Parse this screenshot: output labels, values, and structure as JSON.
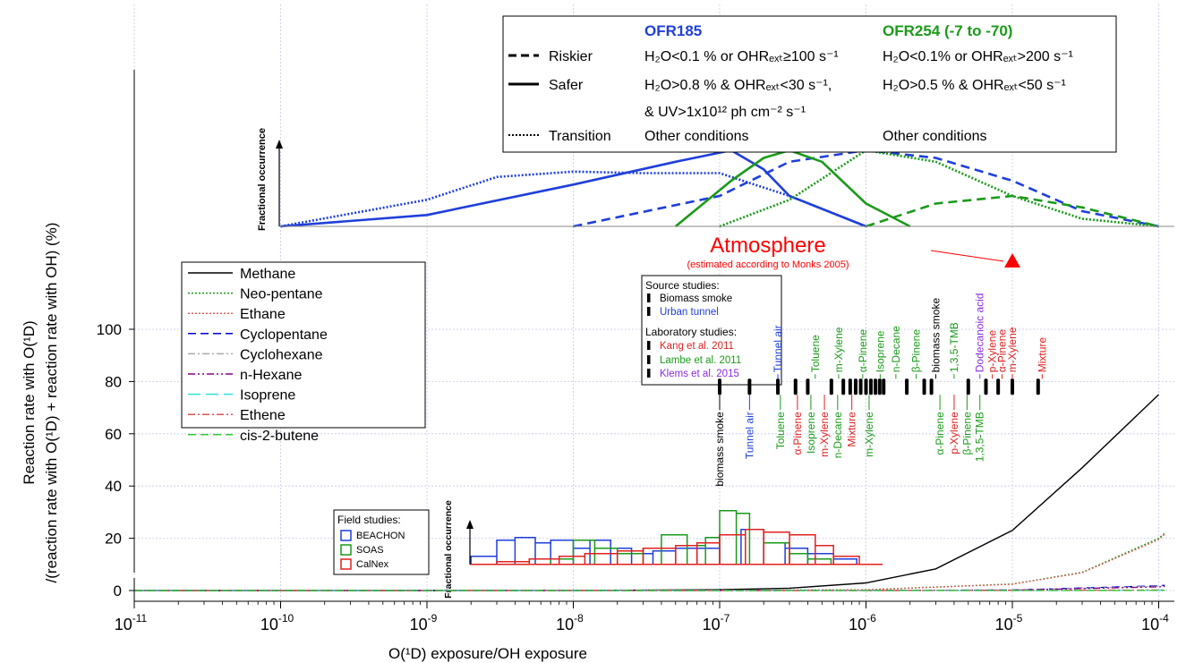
{
  "chart_data": {
    "type": "line",
    "x_scale": "log",
    "xlim": [
      5e-12,
      0.00011
    ],
    "ylim": [
      -2,
      115
    ],
    "grid": true,
    "xlabel": "O(¹D) exposure/OH exposure",
    "ylabel_line1": "Reaction rate with O(¹D)",
    "ylabel_line2": "/(reaction rate with O(¹D) + reaction rate with OH) (%)",
    "x_ticks": [
      {
        "value": 1e-11,
        "base": "10",
        "exp": "-11"
      },
      {
        "value": 1e-10,
        "base": "10",
        "exp": "-10"
      },
      {
        "value": 1e-09,
        "base": "10",
        "exp": "-9"
      },
      {
        "value": 1e-08,
        "base": "10",
        "exp": "-8"
      },
      {
        "value": 1e-07,
        "base": "10",
        "exp": "-7"
      },
      {
        "value": 1e-06,
        "base": "10",
        "exp": "-6"
      },
      {
        "value": 1e-05,
        "base": "10",
        "exp": "-5"
      },
      {
        "value": 0.0001,
        "base": "10",
        "exp": "-4"
      }
    ],
    "y_ticks": [
      {
        "value": 0,
        "label": "0"
      },
      {
        "value": 20,
        "label": "20"
      },
      {
        "value": 40,
        "label": "40"
      },
      {
        "value": 60,
        "label": "60"
      },
      {
        "value": 80,
        "label": "80"
      },
      {
        "value": 100,
        "label": "100"
      }
    ],
    "series": [
      {
        "name": "Methane",
        "color": "#000000",
        "dash": "solid",
        "x": [
          1e-11,
          1e-09,
          1e-08,
          1e-07,
          3e-07,
          1e-06,
          3e-06,
          1e-05,
          3e-05,
          0.0001
        ],
        "y": [
          0,
          0,
          0.03,
          0.3,
          0.9,
          2.9,
          8.3,
          23,
          47,
          75
        ]
      },
      {
        "name": "Neo-pentane",
        "color": "#1a9a1a",
        "dash": "dot",
        "x": [
          1e-11,
          1e-08,
          1e-07,
          1e-06,
          1e-05,
          3e-05,
          0.0001,
          0.00011
        ],
        "y": [
          0,
          0,
          0.03,
          0.3,
          2.5,
          7,
          20,
          22
        ]
      },
      {
        "name": "Ethane",
        "color": "#e06060",
        "dash": "dot",
        "x": [
          1e-11,
          1e-08,
          1e-07,
          1e-06,
          1e-05,
          3e-05,
          0.0001,
          0.00011
        ],
        "y": [
          0,
          0,
          0.03,
          0.28,
          2.4,
          6.8,
          19.5,
          21.5
        ]
      },
      {
        "name": "Cyclopentane",
        "color": "#0000cc",
        "dash": "dash",
        "x": [
          1e-11,
          1e-06,
          1e-05,
          0.0001,
          0.00011
        ],
        "y": [
          0,
          0.02,
          0.2,
          1.8,
          2
        ]
      },
      {
        "name": "Cyclohexane",
        "color": "#aaaaaa",
        "dash": "dashdot",
        "x": [
          1e-11,
          1e-06,
          1e-05,
          0.0001,
          0.00011
        ],
        "y": [
          0,
          0.02,
          0.18,
          1.6,
          1.8
        ]
      },
      {
        "name": "n-Hexane",
        "color": "#880088",
        "dash": "dashdotdot",
        "x": [
          1e-11,
          1e-06,
          1e-05,
          0.0001,
          0.00011
        ],
        "y": [
          0,
          0.015,
          0.15,
          1.4,
          1.6
        ]
      },
      {
        "name": "Isoprene",
        "color": "#33e0e0",
        "dash": "longdash",
        "x": [
          1e-11,
          1e-05,
          0.0001,
          0.00011
        ],
        "y": [
          0,
          0.01,
          0.1,
          0.12
        ]
      },
      {
        "name": "Ethene",
        "color": "#e05050",
        "dash": "dashdot",
        "x": [
          1e-11,
          1e-05,
          0.0001,
          0.00011
        ],
        "y": [
          0,
          0.02,
          0.2,
          0.22
        ]
      },
      {
        "name": "cis-2-butene",
        "color": "#33cc33",
        "dash": "dash",
        "x": [
          1e-11,
          1e-05,
          0.0001,
          0.00011
        ],
        "y": [
          0,
          0.005,
          0.05,
          0.06
        ]
      }
    ],
    "exposure_distributions": {
      "ylabel": "Fractional occurrence",
      "curves": [
        {
          "group": "OFR185",
          "type": "Safer",
          "color": "#1f3fdb",
          "dash": "solid",
          "x": [
            1e-10,
            1e-09,
            1e-08,
            5e-08,
            1.2e-07,
            2e-07,
            3e-07,
            1e-06
          ],
          "y": [
            0,
            0.15,
            0.55,
            0.85,
            1.0,
            0.75,
            0.4,
            0
          ]
        },
        {
          "group": "OFR185",
          "type": "Riskier",
          "color": "#1f3fdb",
          "dash": "dash",
          "x": [
            1e-08,
            1e-07,
            3e-07,
            1e-06,
            3e-06,
            1e-05,
            3e-05,
            0.0001
          ],
          "y": [
            0,
            0.4,
            0.85,
            1.0,
            0.9,
            0.6,
            0.2,
            0
          ]
        },
        {
          "group": "OFR185",
          "type": "Transition",
          "color": "#1f3fdb",
          "dash": "dot",
          "x": [
            1e-10,
            1e-09,
            3e-09,
            1e-08,
            3e-08,
            1e-07,
            3e-07,
            1e-06
          ],
          "y": [
            0,
            0.35,
            0.65,
            0.72,
            0.7,
            0.7,
            0.4,
            0
          ]
        },
        {
          "group": "OFR254 (-7 to -70)",
          "type": "Safer",
          "color": "#1a9a1a",
          "dash": "solid",
          "x": [
            5e-08,
            1.2e-07,
            2e-07,
            3e-07,
            5e-07,
            1e-06,
            2e-06
          ],
          "y": [
            0,
            0.6,
            0.9,
            1.0,
            0.85,
            0.3,
            0
          ]
        },
        {
          "group": "OFR254 (-7 to -70)",
          "type": "Riskier",
          "color": "#1a9a1a",
          "dash": "dash",
          "x": [
            1e-06,
            3e-06,
            1e-05,
            3e-05,
            0.0001
          ],
          "y": [
            0,
            0.3,
            0.4,
            0.25,
            0
          ]
        },
        {
          "group": "OFR254 (-7 to -70)",
          "type": "Transition",
          "color": "#1a9a1a",
          "dash": "dot",
          "x": [
            1e-07,
            3e-07,
            1e-06,
            3e-06,
            1e-05,
            3e-05,
            0.0001
          ],
          "y": [
            0,
            0.35,
            1.0,
            0.85,
            0.4,
            0.1,
            0
          ]
        }
      ]
    },
    "ofr_legend": {
      "col1_header": "OFR185",
      "col2_header": "OFR254 (-7 to -70)",
      "rows": [
        {
          "label": "Riskier",
          "dash": "dash",
          "c1": "H₂O<0.1 % or OHRₑₓₜ≥100 s⁻¹",
          "c2": "H₂O<0.1% or OHRₑₓₜ>200 s⁻¹"
        },
        {
          "label": "Safer",
          "dash": "solid",
          "c1": "H₂O>0.8 % & OHRₑₓₜ<30 s⁻¹,",
          "c2": "H₂O>0.5 % & OHRₑₓₜ<50 s⁻¹"
        },
        {
          "label": "",
          "dash": "none",
          "c1": "& UV>1x10¹² ph cm⁻² s⁻¹",
          "c2": ""
        },
        {
          "label": "Transition",
          "dash": "dot",
          "c1": "Other conditions",
          "c2": "Other conditions"
        }
      ]
    },
    "atmosphere": {
      "label": "Atmosphere",
      "sublabel": "(estimated according to Monks 2005)",
      "x": 1e-05,
      "color": "#ff0000"
    },
    "studies": {
      "source_header": "Source studies:",
      "lab_header": "Laboratory studies:",
      "legend": [
        {
          "name": "Biomass smoke",
          "color": "#000000",
          "kind": "source"
        },
        {
          "name": "Urban tunnel",
          "color": "#1f3fdb",
          "kind": "source"
        },
        {
          "name": "Kang et al. 2011",
          "color": "#e02020",
          "kind": "lab"
        },
        {
          "name": "Lambe et al. 2011",
          "color": "#1a9a1a",
          "kind": "lab"
        },
        {
          "name": "Klems et al. 2015",
          "color": "#8a2be2",
          "kind": "lab"
        }
      ],
      "markers_y": 78,
      "top_labels": [
        {
          "text": "Tunnel air",
          "color": "#1f3fdb",
          "x": 2.5e-07
        },
        {
          "text": "Toluene",
          "color": "#1a9a1a",
          "x": 4.5e-07
        },
        {
          "text": "m-Xylene",
          "color": "#1a9a1a",
          "x": 6.5e-07
        },
        {
          "text": "α-Pinene",
          "color": "#1a9a1a",
          "x": 9.5e-07
        },
        {
          "text": "Isoprene",
          "color": "#1a9a1a",
          "x": 1.25e-06
        },
        {
          "text": "n-Decane",
          "color": "#1a9a1a",
          "x": 1.6e-06
        },
        {
          "text": "β-Pinene",
          "color": "#1a9a1a",
          "x": 2.2e-06
        },
        {
          "text": "biomass smoke",
          "color": "#000000",
          "x": 3e-06
        },
        {
          "text": "1,3,5-TMB",
          "color": "#1a9a1a",
          "x": 4e-06
        },
        {
          "text": "Dodecanoic acid",
          "color": "#8a2be2",
          "x": 6e-06
        },
        {
          "text": "p-Xylene",
          "color": "#e02020",
          "x": 7.3e-06
        },
        {
          "text": "α-Pinene",
          "color": "#e02020",
          "x": 8.5e-06
        },
        {
          "text": "m-Xylene",
          "color": "#e02020",
          "x": 1e-05
        },
        {
          "text": "Mixture",
          "color": "#e02020",
          "x": 1.6e-05
        }
      ],
      "bottom_labels": [
        {
          "text": "biomass smoke",
          "color": "#000000",
          "x": 1e-07
        },
        {
          "text": "Tunnel air",
          "color": "#1f3fdb",
          "x": 1.6e-07
        },
        {
          "text": "Toluene",
          "color": "#1a9a1a",
          "x": 2.6e-07
        },
        {
          "text": "α-Pinene",
          "color": "#e02020",
          "x": 3.4e-07
        },
        {
          "text": "Isoprene",
          "color": "#1a9a1a",
          "x": 4.2e-07
        },
        {
          "text": "m-Xylene",
          "color": "#e02020",
          "x": 5.2e-07
        },
        {
          "text": "n-Decane",
          "color": "#1a9a1a",
          "x": 6.4e-07
        },
        {
          "text": "Mixture",
          "color": "#e02020",
          "x": 8e-07
        },
        {
          "text": "m-Xylene",
          "color": "#1a9a1a",
          "x": 1.05e-06
        },
        {
          "text": "α-Pinene",
          "color": "#1a9a1a",
          "x": 3.2e-06
        },
        {
          "text": "p-Xylene",
          "color": "#e02020",
          "x": 4e-06
        },
        {
          "text": "β-Pinene",
          "color": "#1a9a1a",
          "x": 4.9e-06
        },
        {
          "text": "1,3,5-TMB",
          "color": "#1a9a1a",
          "x": 6e-06
        }
      ],
      "markers": [
        {
          "x": 1e-07,
          "color": "#000000"
        },
        {
          "x": 1.6e-07,
          "color": "#000000"
        },
        {
          "x": 2.5e-07,
          "color": "#000000"
        },
        {
          "x": 3.3e-07,
          "color": "#000000"
        },
        {
          "x": 4e-07,
          "color": "#000000"
        },
        {
          "x": 5.8e-07,
          "color": "#000000"
        },
        {
          "x": 7e-07,
          "color": "#000000"
        },
        {
          "x": 7.8e-07,
          "color": "#000000"
        },
        {
          "x": 8.5e-07,
          "color": "#000000"
        },
        {
          "x": 9.2e-07,
          "color": "#000000"
        },
        {
          "x": 1e-06,
          "color": "#000000"
        },
        {
          "x": 1.08e-06,
          "color": "#000000"
        },
        {
          "x": 1.16e-06,
          "color": "#000000"
        },
        {
          "x": 1.24e-06,
          "color": "#000000"
        },
        {
          "x": 1.32e-06,
          "color": "#000000"
        },
        {
          "x": 1.9e-06,
          "color": "#000000"
        },
        {
          "x": 2.5e-06,
          "color": "#000000"
        },
        {
          "x": 2.8e-06,
          "color": "#000000"
        },
        {
          "x": 5e-06,
          "color": "#000000"
        },
        {
          "x": 6.6e-06,
          "color": "#000000"
        },
        {
          "x": 8e-06,
          "color": "#000000"
        },
        {
          "x": 1e-05,
          "color": "#000000"
        },
        {
          "x": 1.5e-05,
          "color": "#000000"
        }
      ]
    },
    "field_studies": {
      "header": "Field studies:",
      "ylabel": "Fractional occurrence",
      "items": [
        {
          "name": "BEACHON",
          "color": "#1f3fdb",
          "x": [
            2e-09,
            3e-09,
            4e-09,
            5.5e-09,
            7e-09,
            1e-08,
            1.3e-08,
            1.8e-08,
            2.5e-08,
            3.5e-08,
            5e-08,
            7e-08,
            1e-07,
            1.4e-07,
            2e-07,
            2.8e-07,
            4e-07,
            6e-07
          ],
          "y": [
            0.15,
            0.45,
            0.5,
            0.4,
            0.45,
            0.3,
            0.45,
            0.3,
            0.2,
            0.25,
            0.3,
            0.3,
            0.55,
            0.65,
            0.4,
            0.3,
            0.2,
            0.1
          ]
        },
        {
          "name": "SOAS",
          "color": "#1a9a1a",
          "x": [
            7e-09,
            1e-08,
            1.4e-08,
            2e-08,
            3e-08,
            4e-08,
            6e-08,
            8e-08,
            1e-07,
            1.3e-07,
            1.6e-07,
            2e-07,
            3e-07,
            4e-07
          ],
          "y": [
            0.1,
            0.45,
            0.3,
            0.2,
            0.3,
            0.55,
            0.35,
            0.5,
            1.0,
            0.95,
            0.65,
            0.4,
            0.2,
            0.1
          ]
        },
        {
          "name": "CalNex",
          "color": "#e02020",
          "x": [
            3e-09,
            5e-09,
            8e-09,
            1.2e-08,
            2e-08,
            3e-08,
            5e-08,
            7e-08,
            1e-07,
            1.5e-07,
            2e-07,
            3e-07,
            4.5e-07,
            6e-07,
            9e-07
          ],
          "y": [
            0.05,
            0.1,
            0.15,
            0.2,
            0.25,
            0.3,
            0.35,
            0.4,
            0.55,
            0.65,
            0.6,
            0.55,
            0.35,
            0.15,
            0.0
          ]
        }
      ]
    }
  }
}
